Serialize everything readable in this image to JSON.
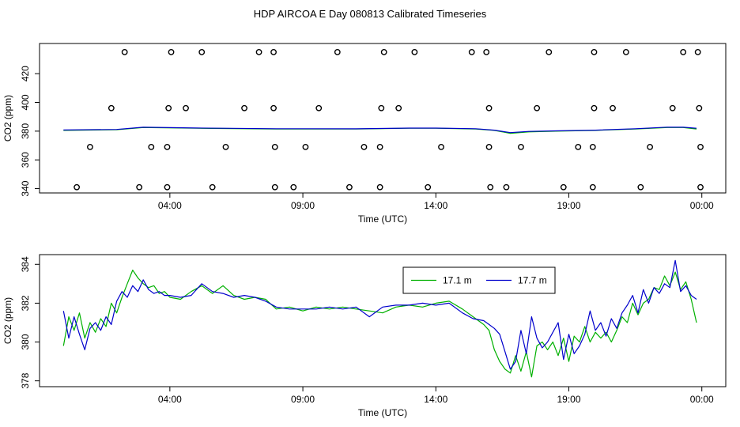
{
  "title": "HDP AIRCOA E  Day 080813  Calibrated Timeseries",
  "chart_data": [
    {
      "type": "scatter",
      "xlabel": "Time (UTC)",
      "ylabel": "CO2 (ppm)",
      "x_tick_labels": [
        "04:00",
        "09:00",
        "14:00",
        "19:00",
        "00:00"
      ],
      "x_tick_values": [
        4,
        9,
        14,
        19,
        24
      ],
      "xlim": [
        -0.9,
        24.9
      ],
      "y_ticks": [
        340,
        360,
        380,
        400,
        420
      ],
      "ylim": [
        337,
        441
      ],
      "grid": false,
      "legend": "none",
      "series": [
        {
          "kind": "points",
          "color": "#000000",
          "x": [
            2.3,
            4.05,
            5.2,
            7.35,
            7.9,
            10.3,
            12.05,
            13.2,
            15.35,
            15.9,
            18.25,
            19.95,
            21.15,
            23.3,
            23.85,
            1.8,
            3.95,
            4.6,
            6.8,
            7.9,
            9.6,
            11.95,
            12.6,
            16.0,
            17.8,
            19.95,
            20.65,
            22.9,
            23.9,
            1.0,
            3.3,
            3.9,
            6.1,
            7.95,
            9.1,
            11.3,
            11.9,
            14.2,
            16.0,
            17.2,
            19.35,
            19.9,
            22.05,
            23.95,
            0.5,
            2.85,
            3.9,
            5.6,
            7.95,
            8.65,
            10.75,
            11.9,
            13.7,
            16.05,
            16.65,
            18.8,
            19.9,
            21.7,
            23.95
          ],
          "y": [
            435,
            435,
            435,
            435,
            435,
            435,
            435,
            435,
            435,
            435,
            435,
            435,
            435,
            435,
            435,
            396,
            396,
            396,
            396,
            396,
            396,
            396,
            396,
            396,
            396,
            396,
            396,
            396,
            396,
            369,
            369,
            369,
            369,
            369,
            369,
            369,
            369,
            369,
            369,
            369,
            369,
            369,
            369,
            369,
            341,
            341,
            341,
            341,
            341,
            341,
            341,
            341,
            341,
            341,
            341,
            341,
            341,
            341,
            341
          ]
        },
        {
          "kind": "line",
          "color": "#00b000",
          "x": [
            0.0,
            2.0,
            3.0,
            5.0,
            8.0,
            11.0,
            13.0,
            14.0,
            15.5,
            16.2,
            16.8,
            17.5,
            18.5,
            20.0,
            21.5,
            22.7,
            23.3,
            23.8
          ],
          "y": [
            380.5,
            381.0,
            382.5,
            382.0,
            381.5,
            381.5,
            382.0,
            382.0,
            381.5,
            380.5,
            378.5,
            379.5,
            380.0,
            380.5,
            381.5,
            382.5,
            382.5,
            381.5
          ]
        },
        {
          "kind": "line",
          "color": "#0000cc",
          "x": [
            0.0,
            2.0,
            3.0,
            5.0,
            8.0,
            11.0,
            13.0,
            14.0,
            15.5,
            16.2,
            16.8,
            17.5,
            18.5,
            20.0,
            21.5,
            22.7,
            23.3,
            23.8
          ],
          "y": [
            380.8,
            381.2,
            382.7,
            382.2,
            381.7,
            381.6,
            382.1,
            382.1,
            381.7,
            380.7,
            379.0,
            379.8,
            380.2,
            380.7,
            381.7,
            382.8,
            382.7,
            382.0
          ]
        }
      ]
    },
    {
      "type": "line",
      "xlabel": "Time (UTC)",
      "ylabel": "CO2 (ppm)",
      "x_tick_labels": [
        "04:00",
        "09:00",
        "14:00",
        "19:00",
        "00:00"
      ],
      "x_tick_values": [
        4,
        9,
        14,
        19,
        24
      ],
      "xlim": [
        -0.9,
        24.9
      ],
      "y_ticks": [
        378,
        380,
        382,
        384
      ],
      "ylim": [
        377.7,
        384.5
      ],
      "grid": false,
      "legend": "top-center",
      "series": [
        {
          "name": "17.1 m",
          "color": "#00b000",
          "x": [
            0.0,
            0.2,
            0.4,
            0.6,
            0.8,
            1.0,
            1.2,
            1.4,
            1.6,
            1.8,
            2.0,
            2.2,
            2.4,
            2.6,
            2.8,
            3.0,
            3.2,
            3.4,
            3.6,
            3.8,
            4.0,
            4.4,
            4.8,
            5.2,
            5.6,
            6.0,
            6.4,
            6.8,
            7.2,
            7.6,
            8.0,
            8.5,
            9.0,
            9.5,
            10.0,
            10.5,
            11.0,
            11.5,
            12.0,
            12.5,
            13.0,
            13.5,
            14.0,
            14.5,
            15.0,
            15.4,
            15.8,
            16.0,
            16.2,
            16.4,
            16.6,
            16.8,
            17.0,
            17.2,
            17.4,
            17.6,
            17.8,
            18.0,
            18.2,
            18.4,
            18.6,
            18.8,
            19.0,
            19.2,
            19.4,
            19.6,
            19.8,
            20.0,
            20.2,
            20.4,
            20.6,
            20.8,
            21.0,
            21.2,
            21.4,
            21.6,
            21.8,
            22.0,
            22.2,
            22.4,
            22.6,
            22.8,
            23.0,
            23.2,
            23.4,
            23.6,
            23.8
          ],
          "y": [
            379.8,
            381.3,
            380.6,
            381.5,
            380.2,
            381.0,
            380.5,
            381.2,
            380.8,
            382.0,
            381.5,
            382.3,
            383.0,
            383.7,
            383.3,
            383.0,
            382.8,
            382.9,
            382.5,
            382.6,
            382.3,
            382.2,
            382.6,
            382.9,
            382.5,
            382.9,
            382.4,
            382.2,
            382.3,
            382.2,
            381.7,
            381.8,
            381.6,
            381.8,
            381.7,
            381.8,
            381.7,
            381.6,
            381.5,
            381.8,
            381.9,
            381.8,
            382.0,
            382.1,
            381.7,
            381.3,
            380.9,
            380.6,
            379.6,
            379.0,
            378.6,
            378.4,
            379.3,
            378.5,
            379.5,
            378.2,
            379.8,
            380.0,
            379.6,
            380.0,
            379.3,
            380.2,
            379.0,
            380.3,
            380.0,
            380.8,
            380.0,
            380.5,
            380.2,
            380.5,
            380.0,
            380.6,
            381.3,
            381.0,
            382.0,
            381.4,
            382.0,
            382.2,
            382.8,
            382.7,
            383.4,
            382.9,
            383.6,
            382.7,
            383.1,
            382.2,
            381.0
          ]
        },
        {
          "name": "17.7 m",
          "color": "#0000cc",
          "x": [
            0.0,
            0.2,
            0.4,
            0.6,
            0.8,
            1.0,
            1.2,
            1.4,
            1.6,
            1.8,
            2.0,
            2.2,
            2.4,
            2.6,
            2.8,
            3.0,
            3.2,
            3.4,
            3.6,
            3.8,
            4.0,
            4.4,
            4.8,
            5.2,
            5.6,
            6.0,
            6.4,
            6.8,
            7.2,
            7.6,
            8.0,
            8.5,
            9.0,
            9.5,
            10.0,
            10.5,
            11.0,
            11.5,
            12.0,
            12.5,
            13.0,
            13.5,
            14.0,
            14.5,
            15.0,
            15.4,
            15.8,
            16.0,
            16.2,
            16.4,
            16.6,
            16.8,
            17.0,
            17.2,
            17.4,
            17.6,
            17.8,
            18.0,
            18.2,
            18.4,
            18.6,
            18.8,
            19.0,
            19.2,
            19.4,
            19.6,
            19.8,
            20.0,
            20.2,
            20.4,
            20.6,
            20.8,
            21.0,
            21.2,
            21.4,
            21.6,
            21.8,
            22.0,
            22.2,
            22.4,
            22.6,
            22.8,
            23.0,
            23.2,
            23.4,
            23.6,
            23.8
          ],
          "y": [
            381.6,
            380.2,
            381.3,
            380.4,
            379.6,
            380.7,
            381.0,
            380.6,
            381.3,
            380.9,
            382.1,
            382.6,
            382.3,
            382.9,
            382.6,
            383.2,
            382.7,
            382.5,
            382.6,
            382.4,
            382.4,
            382.3,
            382.4,
            383.0,
            382.6,
            382.5,
            382.3,
            382.4,
            382.3,
            382.1,
            381.8,
            381.7,
            381.7,
            381.7,
            381.8,
            381.7,
            381.8,
            381.3,
            381.8,
            381.9,
            381.9,
            382.0,
            381.9,
            382.0,
            381.5,
            381.2,
            381.1,
            380.9,
            380.7,
            380.4,
            379.5,
            378.6,
            379.0,
            380.6,
            379.4,
            381.3,
            380.2,
            379.7,
            380.0,
            380.5,
            381.0,
            379.1,
            380.4,
            379.4,
            379.8,
            380.4,
            381.6,
            380.6,
            381.0,
            380.3,
            381.2,
            380.7,
            381.5,
            381.9,
            382.4,
            381.5,
            382.7,
            382.0,
            382.8,
            382.5,
            383.0,
            382.8,
            384.2,
            382.6,
            382.9,
            382.4,
            382.2
          ]
        }
      ]
    }
  ]
}
